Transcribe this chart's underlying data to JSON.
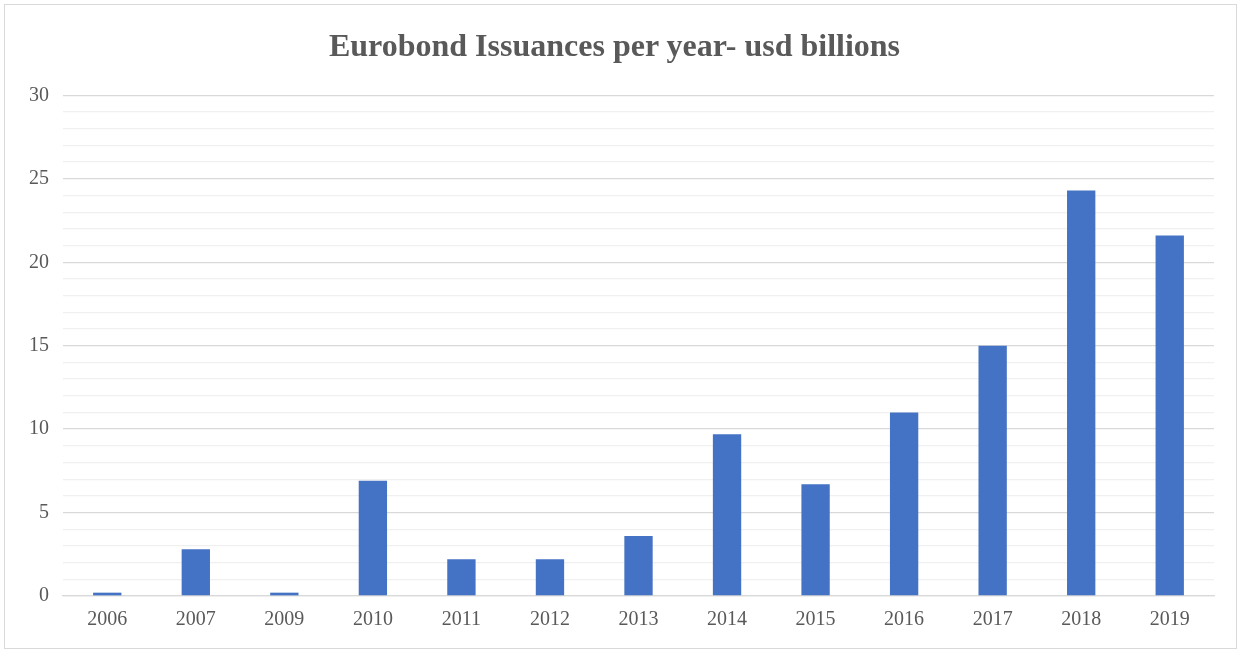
{
  "chart_data": {
    "type": "bar",
    "title": "Eurobond Issuances per year- usd billions",
    "categories": [
      "2006",
      "2007",
      "2009",
      "2010",
      "2011",
      "2012",
      "2013",
      "2014",
      "2015",
      "2016",
      "2017",
      "2018",
      "2019"
    ],
    "values": [
      0.2,
      2.8,
      0.2,
      6.9,
      2.2,
      2.2,
      3.6,
      9.7,
      6.7,
      11.0,
      15.0,
      24.3,
      21.6
    ],
    "color": "#4472c4",
    "ylim": [
      0,
      30
    ],
    "yticks": [
      0,
      {
        "value": 1,
        "label": null
      },
      {
        "value": 2,
        "label": null
      },
      {
        "value": 3,
        "label": null
      },
      {
        "value": 4,
        "label": null
      },
      5,
      {
        "value": 6,
        "label": null
      },
      {
        "value": 7,
        "label": null
      },
      {
        "value": 8,
        "label": null
      },
      {
        "value": 9,
        "label": null
      },
      10,
      {
        "value": 11,
        "label": null
      },
      {
        "value": 12,
        "label": null
      },
      {
        "value": 13,
        "label": null
      },
      {
        "value": 14,
        "label": null
      },
      15,
      {
        "value": 16,
        "label": null
      },
      {
        "value": 17,
        "label": null
      },
      {
        "value": 18,
        "label": null
      },
      {
        "value": 19,
        "label": null
      },
      20,
      {
        "value": 21,
        "label": null
      },
      {
        "value": 22,
        "label": null
      },
      {
        "value": 23,
        "label": null
      },
      {
        "value": 24,
        "label": null
      },
      25,
      {
        "value": 26,
        "label": null
      },
      {
        "value": 27,
        "label": null
      },
      {
        "value": 28,
        "label": null
      },
      {
        "value": 29,
        "label": null
      },
      30
    ],
    "grid": "y",
    "legend": false
  }
}
